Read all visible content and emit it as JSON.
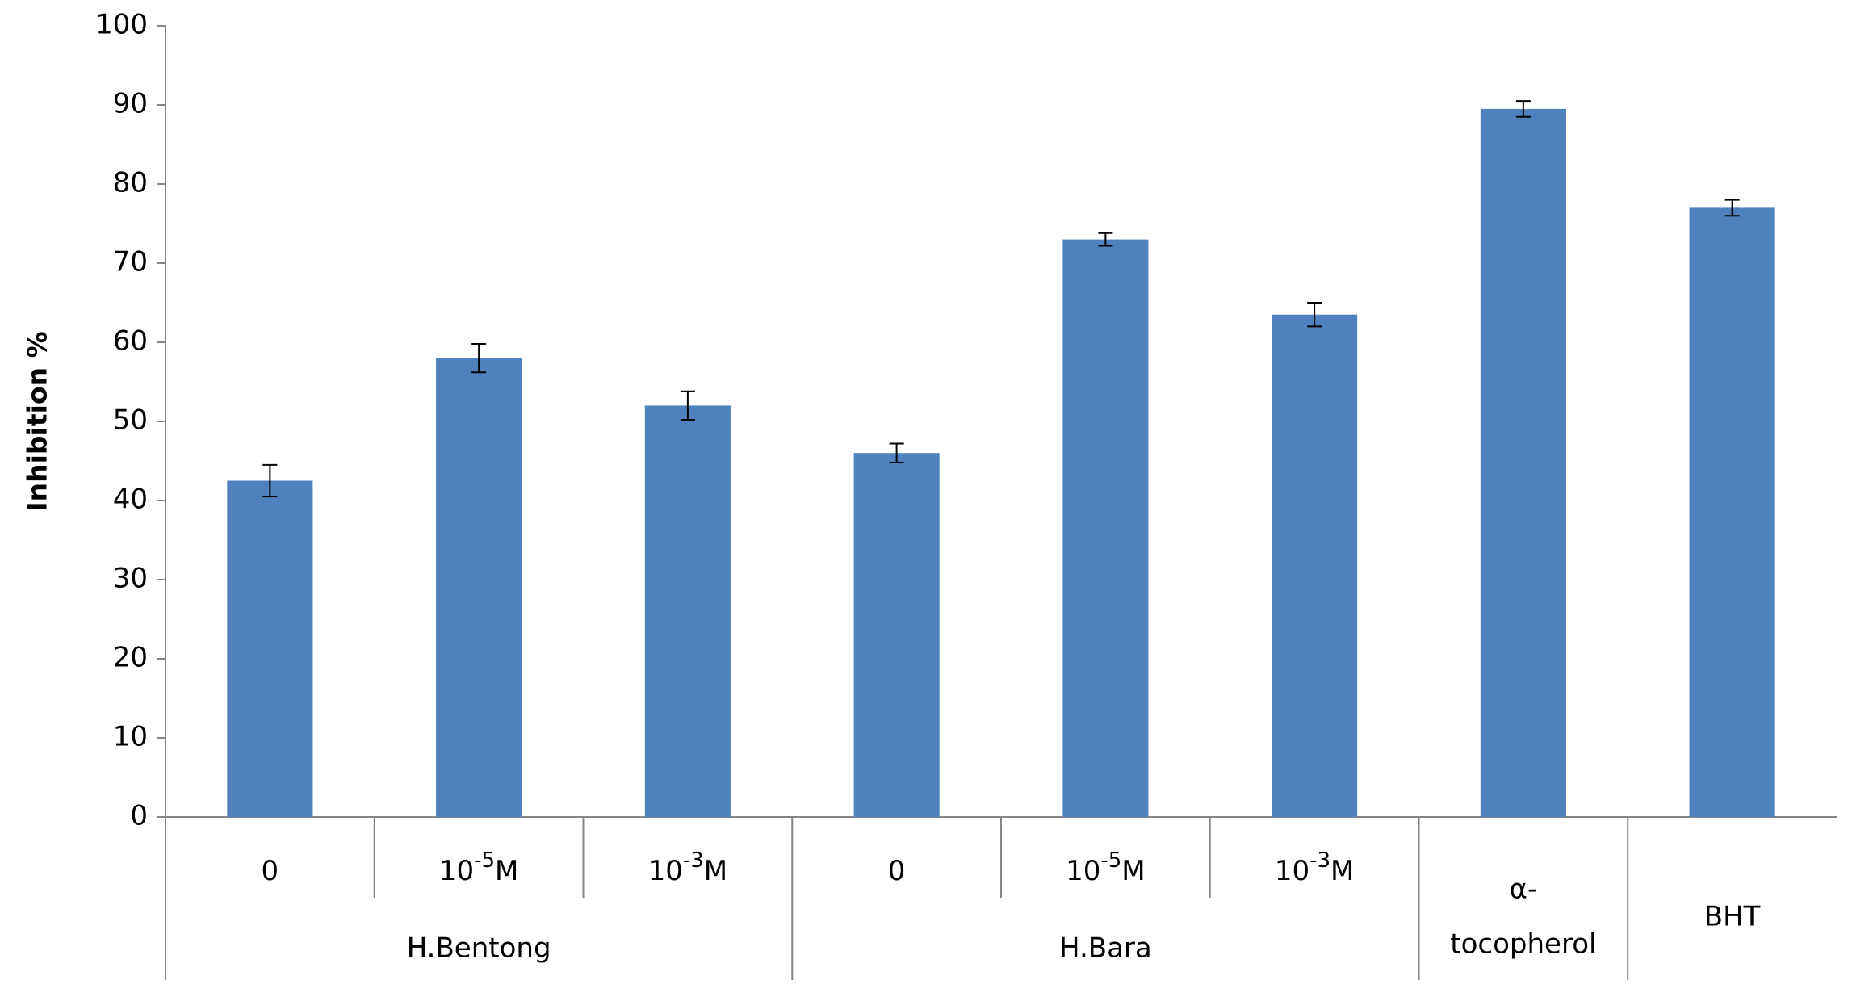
{
  "chart_data": {
    "type": "bar",
    "y_label": "Inhibition %",
    "color": "#4f81bd",
    "error_color": "#000000",
    "ylim": [
      0,
      100
    ],
    "yticks": [
      0,
      10,
      20,
      30,
      40,
      50,
      60,
      70,
      80,
      90,
      100
    ],
    "grid": false,
    "groups": [
      {
        "name": [
          "H.Bentong"
        ],
        "categories": [
          [
            "0"
          ],
          [
            "10",
            "-5",
            "M"
          ],
          [
            "10",
            "-3",
            "M"
          ]
        ],
        "values": [
          42.5,
          58,
          52
        ],
        "errors": [
          2,
          1.8,
          1.8
        ]
      },
      {
        "name": [
          "H.Bara"
        ],
        "categories": [
          [
            "0"
          ],
          [
            "10",
            "-5",
            "M"
          ],
          [
            "10",
            "-3",
            "M"
          ]
        ],
        "values": [
          46,
          73,
          63.5
        ],
        "errors": [
          1.2,
          0.8,
          1.5
        ]
      },
      {
        "name": [
          "α-",
          "tocopherol"
        ],
        "categories": [
          null
        ],
        "values": [
          89.5
        ],
        "errors": [
          1
        ]
      },
      {
        "name": [
          "BHT"
        ],
        "categories": [
          null
        ],
        "values": [
          77
        ],
        "errors": [
          1
        ]
      }
    ]
  }
}
